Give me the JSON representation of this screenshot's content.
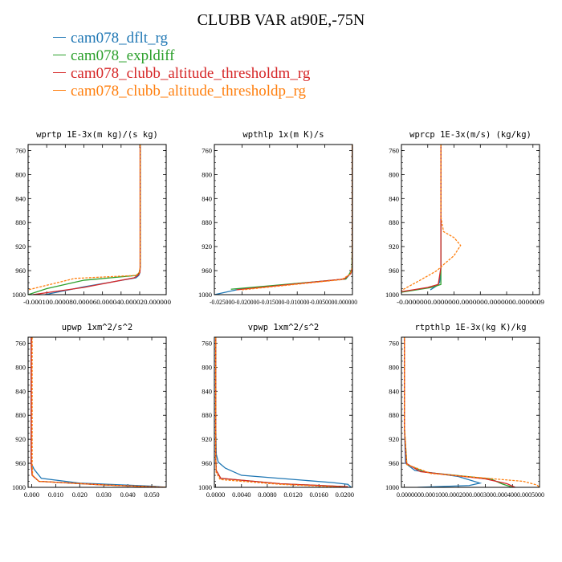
{
  "title": "CLUBB VAR at90E,-75N",
  "legend": [
    {
      "label": "cam078_dflt_rg",
      "color": "#1f77b4"
    },
    {
      "label": "cam078_expldiff",
      "color": "#2ca02c"
    },
    {
      "label": "cam078_clubb_altitude_thresholdm_rg",
      "color": "#d62728"
    },
    {
      "label": "cam078_clubb_altitude_thresholdp_rg",
      "color": "#ff7f0e"
    }
  ],
  "chart_data": [
    {
      "type": "line",
      "title": "wprtp  1E-3x(m kg)/(s kg)",
      "xlim": [
        -0.00012,
        2.85e-05
      ],
      "ylim": [
        1000,
        750
      ],
      "yticks": [
        "760",
        "800",
        "840",
        "880",
        "920",
        "960",
        "1000"
      ],
      "xticks": [
        {
          "value": -0.00012,
          "label": "-0.00012"
        },
        {
          "value": -0.0001,
          "label": "-0.000100"
        },
        {
          "value": -8e-05,
          "label": "-0.000080"
        },
        {
          "value": -6e-05,
          "label": "-0.000060"
        },
        {
          "value": -4e-05,
          "label": "-0.000040"
        },
        {
          "value": -2e-05,
          "label": "-0.000020"
        },
        {
          "value": 0,
          "label": "0.000000"
        }
      ],
      "tick_text": "-0.000100.000080.000060.000040.000020.000000",
      "series": [
        {
          "color": "#1f77b4",
          "x": [
            5e-07,
            5e-07,
            5e-07,
            3e-07,
            -1e-06,
            -4e-06,
            -6e-05,
            -0.000102
          ],
          "y": [
            750,
            900,
            955,
            963,
            968,
            972,
            987,
            1000
          ]
        },
        {
          "color": "#2ca02c",
          "x": [
            6e-07,
            6e-07,
            6e-07,
            -5e-07,
            -3e-06,
            -6e-05,
            -0.0001,
            -0.00012
          ],
          "y": [
            750,
            900,
            955,
            963,
            968,
            976,
            990,
            1000
          ]
        },
        {
          "color": "#d62728",
          "x": [
            5e-07,
            5e-07,
            5e-07,
            2e-07,
            -2e-06,
            -6e-06,
            -6e-05,
            -0.000115
          ],
          "y": [
            750,
            900,
            955,
            963,
            968,
            972,
            988,
            1000
          ]
        },
        {
          "color": "#ff7f0e",
          "x": [
            4e-07,
            4e-07,
            4e-07,
            -5e-07,
            -4e-06,
            -7e-05,
            -0.00012
          ],
          "y": [
            750,
            900,
            955,
            963,
            968,
            973,
            992
          ]
        }
      ]
    },
    {
      "type": "line",
      "title": "wpthlp  1x(m K)/s",
      "xlim": [
        -0.025,
        0.0
      ],
      "ylim": [
        1000,
        750
      ],
      "yticks": [
        "760",
        "800",
        "840",
        "880",
        "920",
        "960",
        "1000"
      ],
      "xticks": [
        {
          "value": -0.025,
          "label": "-0.025000"
        },
        {
          "value": -0.02,
          "label": "-0.020000"
        },
        {
          "value": -0.015,
          "label": "-0.015000"
        },
        {
          "value": -0.01,
          "label": "-0.010000"
        },
        {
          "value": -0.005,
          "label": "-0.005000"
        },
        {
          "value": 0,
          "label": "0.000000"
        }
      ],
      "tick_text": "-0.025000-0.020000-0.015000-0.010000-0.0050000.000000",
      "series": [
        {
          "color": "#1f77b4",
          "x": [
            -2e-05,
            -2e-05,
            -3e-05,
            -0.0002,
            -0.0012,
            -0.02,
            -0.025
          ],
          "y": [
            750,
            900,
            950,
            963,
            974,
            990,
            1000
          ]
        },
        {
          "color": "#2ca02c",
          "x": [
            -2e-05,
            -2e-05,
            -0.0001,
            -0.0006,
            -0.0012,
            -0.022
          ],
          "y": [
            750,
            900,
            958,
            966,
            974,
            991
          ]
        },
        {
          "color": "#d62728",
          "x": [
            -2e-05,
            -2e-05,
            -3e-05,
            -0.0003,
            -0.0015,
            -0.021
          ],
          "y": [
            750,
            900,
            955,
            965,
            974,
            992
          ]
        },
        {
          "color": "#ff7f0e",
          "x": [
            -2e-05,
            -2e-05,
            -3e-05,
            -0.0004,
            -0.002,
            -0.02
          ],
          "y": [
            750,
            900,
            955,
            966,
            975,
            992
          ]
        }
      ]
    },
    {
      "type": "line",
      "title": "wprcp  1E-3x(m/s) (kg/kg)",
      "xlim": [
        -1e-07,
        9.5e-07
      ],
      "ylim": [
        1000,
        750
      ],
      "yticks": [
        "760",
        "800",
        "840",
        "880",
        "920",
        "960",
        "1000"
      ],
      "xticks": [
        {
          "value": -1e-07,
          "label": "-0.0000001"
        },
        {
          "value": 1e-07,
          "label": "0.0000001"
        },
        {
          "value": 3e-07,
          "label": "0.0000003"
        },
        {
          "value": 5e-07,
          "label": "0.0000005"
        },
        {
          "value": 7e-07,
          "label": "0.0000007"
        },
        {
          "value": 9e-07,
          "label": "0.0000009"
        }
      ],
      "tick_text": "-0.0000000.0000000.0000000.0000000.0000009",
      "series": [
        {
          "color": "#1f77b4",
          "x": [
            2e-07,
            2e-07,
            2e-07,
            1.9e-07,
            1.7e-07,
            1.2e-07
          ],
          "y": [
            750,
            900,
            955,
            980,
            985,
            992
          ]
        },
        {
          "color": "#2ca02c",
          "x": [
            2e-07,
            2e-07,
            2e-07,
            2e-07,
            1.3e-07,
            -1e-07
          ],
          "y": [
            750,
            880,
            960,
            983,
            988,
            996
          ]
        },
        {
          "color": "#d62728",
          "x": [
            2e-07,
            2e-07,
            2e-07,
            1.8e-07,
            1e-07,
            -1e-07
          ],
          "y": [
            750,
            900,
            955,
            983,
            988,
            995
          ]
        },
        {
          "color": "#ff7f0e",
          "x": [
            2e-07,
            2e-07,
            2.2e-07,
            3e-07,
            3.5e-07,
            3e-07,
            2.2e-07,
            1.7e-07,
            5e-08,
            -1e-07
          ],
          "y": [
            750,
            870,
            895,
            905,
            918,
            935,
            950,
            960,
            975,
            993
          ]
        }
      ]
    },
    {
      "type": "line",
      "title": "upwp  1xm^2/s^2",
      "xlim": [
        -0.0015,
        0.056
      ],
      "ylim": [
        1000,
        750
      ],
      "yticks": [
        "760",
        "800",
        "840",
        "880",
        "920",
        "960",
        "1000"
      ],
      "xticks": [
        {
          "value": 0,
          "label": "0.000"
        },
        {
          "value": 0.01,
          "label": "0.010"
        },
        {
          "value": 0.02,
          "label": "0.020"
        },
        {
          "value": 0.03,
          "label": "0.030"
        },
        {
          "value": 0.04,
          "label": "0.040"
        },
        {
          "value": 0.05,
          "label": "0.050"
        }
      ],
      "series": [
        {
          "color": "#1f77b4",
          "x": [
            -0.0002,
            -0.0002,
            -0.0002,
            0.001,
            0.004,
            0.02,
            0.05,
            0.056
          ],
          "y": [
            750,
            900,
            960,
            970,
            985,
            993,
            998,
            1000
          ]
        },
        {
          "color": "#2ca02c",
          "x": [
            -0.0002,
            -0.0002,
            0.0002,
            0.003,
            0.03,
            0.056
          ],
          "y": [
            750,
            960,
            980,
            990,
            996,
            1000
          ]
        },
        {
          "color": "#d62728",
          "x": [
            -0.0002,
            -0.0002,
            0.0002,
            0.003,
            0.03,
            0.056
          ],
          "y": [
            750,
            960,
            980,
            990,
            996,
            1000
          ]
        },
        {
          "color": "#ff7f0e",
          "x": [
            0.0002,
            0.0002,
            0.0004,
            0.003,
            0.03,
            0.056
          ],
          "y": [
            750,
            960,
            980,
            990,
            996,
            1000
          ]
        }
      ]
    },
    {
      "type": "line",
      "title": "vpwp  1xm^2/s^2",
      "xlim": [
        -0.0002,
        0.0212
      ],
      "ylim": [
        1000,
        750
      ],
      "yticks": [
        "760",
        "800",
        "840",
        "880",
        "920",
        "960",
        "1000"
      ],
      "xticks": [
        {
          "value": 0,
          "label": "0.0000"
        },
        {
          "value": 0.004,
          "label": "0.0040"
        },
        {
          "value": 0.008,
          "label": "0.0080"
        },
        {
          "value": 0.012,
          "label": "0.0120"
        },
        {
          "value": 0.016,
          "label": "0.0160"
        },
        {
          "value": 0.02,
          "label": "0.0200"
        }
      ],
      "series": [
        {
          "color": "#1f77b4",
          "x": [
            2e-05,
            2e-05,
            0.0001,
            0.0004,
            0.0015,
            0.004,
            0.018,
            0.0205,
            0.021
          ],
          "y": [
            750,
            900,
            945,
            958,
            968,
            980,
            992,
            995,
            1000
          ]
        },
        {
          "color": "#2ca02c",
          "x": [
            1e-05,
            1e-05,
            0.0001,
            0.0008,
            0.01,
            0.0205
          ],
          "y": [
            750,
            950,
            972,
            985,
            994,
            999
          ]
        },
        {
          "color": "#d62728",
          "x": [
            1e-05,
            1e-05,
            0.0001,
            0.0008,
            0.01,
            0.0205
          ],
          "y": [
            750,
            950,
            972,
            985,
            994,
            999
          ]
        },
        {
          "color": "#ff7f0e",
          "x": [
            1e-05,
            1e-05,
            8e-05,
            0.0007,
            0.01,
            0.0203
          ],
          "y": [
            750,
            955,
            975,
            987,
            995,
            1000
          ]
        }
      ]
    },
    {
      "type": "line",
      "title": "rtpthlp  1E-3x(kg K)/kg",
      "xlim": [
        -1e-05,
        0.0005
      ],
      "ylim": [
        1000,
        750
      ],
      "yticks": [
        "760",
        "800",
        "840",
        "880",
        "920",
        "960",
        "1000"
      ],
      "xticks": [
        {
          "value": 0,
          "label": "0.000000"
        },
        {
          "value": 0.0001,
          "label": "0.000100"
        },
        {
          "value": 0.0002,
          "label": "0.000200"
        },
        {
          "value": 0.0003,
          "label": "0.000300"
        },
        {
          "value": 0.0004,
          "label": "0.000400"
        },
        {
          "value": 0.0005,
          "label": "0.000500"
        }
      ],
      "tick_text": "0.0000000.0001000.0002000.0003000.0004000.0005000",
      "series": [
        {
          "color": "#1f77b4",
          "x": [
            1e-06,
            1e-06,
            5e-06,
            4e-05,
            0.0002,
            0.00028,
            0.00024,
            5e-05
          ],
          "y": [
            750,
            900,
            960,
            972,
            982,
            993,
            997,
            1000
          ]
        },
        {
          "color": "#2ca02c",
          "x": [
            1e-06,
            1e-06,
            1e-05,
            8e-05,
            0.00032,
            0.00036,
            0.0004
          ],
          "y": [
            750,
            900,
            962,
            975,
            986,
            994,
            1000
          ]
        },
        {
          "color": "#d62728",
          "x": [
            1e-06,
            1e-06,
            8e-06,
            6e-05,
            0.0003,
            0.00038,
            0.00041
          ],
          "y": [
            750,
            900,
            960,
            974,
            986,
            994,
            1000
          ]
        },
        {
          "color": "#ff7f0e",
          "x": [
            1e-06,
            1e-06,
            1e-05,
            0.0001,
            0.00044,
            0.00049,
            0.0005
          ],
          "y": [
            750,
            900,
            962,
            977,
            990,
            996,
            1000
          ]
        }
      ]
    }
  ]
}
